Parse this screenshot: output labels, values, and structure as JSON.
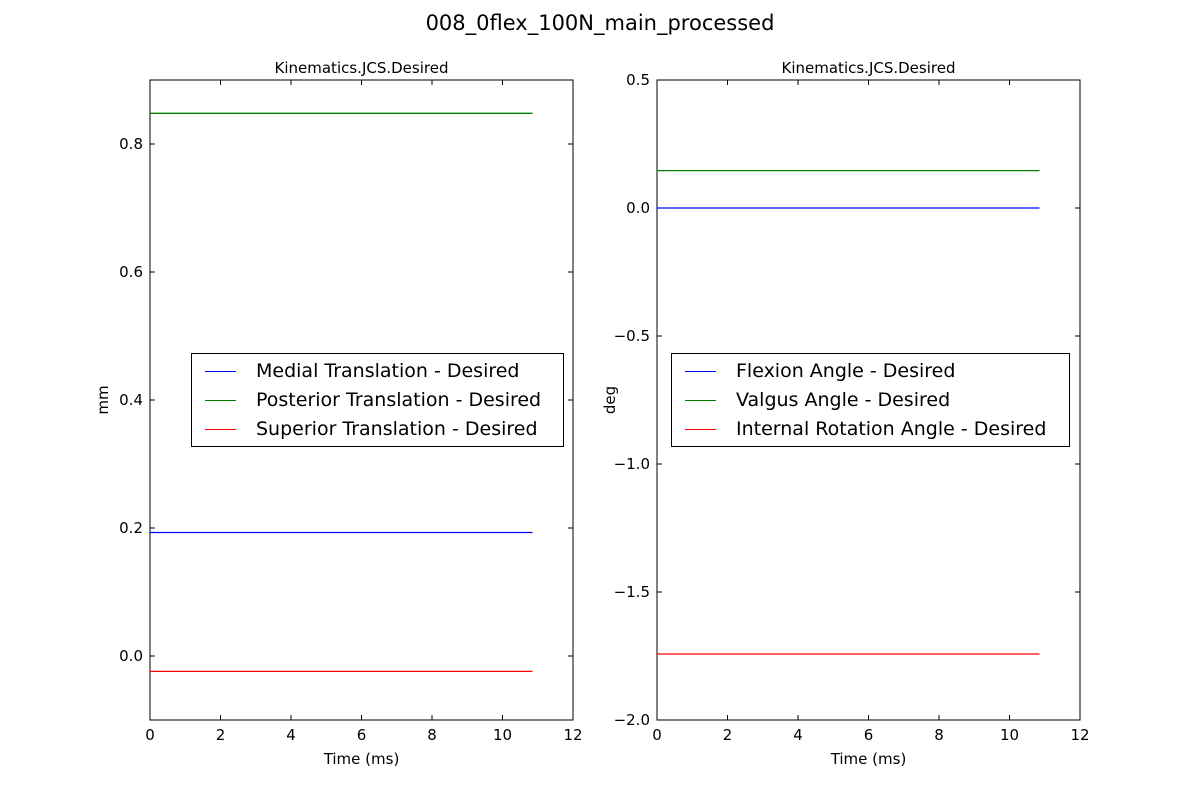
{
  "figure": {
    "suptitle": "008_0flex_100N_main_processed"
  },
  "colors": {
    "blue": "#0000ff",
    "green": "#008000",
    "red": "#ff0000"
  },
  "chart_data": [
    {
      "type": "line",
      "title": "Kinematics.JCS.Desired",
      "xlabel": "Time (ms)",
      "ylabel": "mm",
      "xlim": [
        0,
        12
      ],
      "ylim": [
        -0.1,
        0.9
      ],
      "xticks": [
        0,
        2,
        4,
        6,
        8,
        10,
        12
      ],
      "xtick_labels": [
        "0",
        "2",
        "4",
        "6",
        "8",
        "10",
        "12"
      ],
      "yticks": [
        0.0,
        0.2,
        0.4,
        0.6,
        0.8
      ],
      "ytick_labels": [
        "0.0",
        "0.2",
        "0.4",
        "0.6",
        "0.8"
      ],
      "grid": false,
      "legend_position": "center-right",
      "series": [
        {
          "name": "Medial Translation - Desired",
          "color": "#0000ff",
          "x": [
            0,
            10.85
          ],
          "y": [
            0.193,
            0.193
          ]
        },
        {
          "name": "Posterior Translation - Desired",
          "color": "#008000",
          "x": [
            0,
            10.85
          ],
          "y": [
            0.848,
            0.848
          ]
        },
        {
          "name": "Superior Translation - Desired",
          "color": "#ff0000",
          "x": [
            0,
            10.85
          ],
          "y": [
            -0.024,
            -0.024
          ]
        }
      ]
    },
    {
      "type": "line",
      "title": "Kinematics.JCS.Desired",
      "xlabel": "Time (ms)",
      "ylabel": "deg",
      "xlim": [
        0,
        12
      ],
      "ylim": [
        -2.0,
        0.5
      ],
      "xticks": [
        0,
        2,
        4,
        6,
        8,
        10,
        12
      ],
      "xtick_labels": [
        "0",
        "2",
        "4",
        "6",
        "8",
        "10",
        "12"
      ],
      "yticks": [
        -2.0,
        -1.5,
        -1.0,
        -0.5,
        0.0,
        0.5
      ],
      "ytick_labels": [
        "−2.0",
        "−1.5",
        "−1.0",
        "−0.5",
        "0.0",
        "0.5"
      ],
      "grid": false,
      "legend_position": "center",
      "series": [
        {
          "name": "Flexion Angle - Desired",
          "color": "#0000ff",
          "x": [
            0,
            10.85
          ],
          "y": [
            0.0,
            0.0
          ]
        },
        {
          "name": "Valgus Angle - Desired",
          "color": "#008000",
          "x": [
            0,
            10.85
          ],
          "y": [
            0.146,
            0.146
          ]
        },
        {
          "name": "Internal Rotation Angle - Desired",
          "color": "#ff0000",
          "x": [
            0,
            10.85
          ],
          "y": [
            -1.742,
            -1.742
          ]
        }
      ]
    }
  ]
}
